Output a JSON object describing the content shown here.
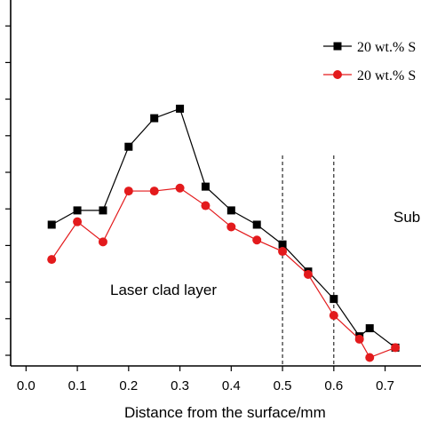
{
  "chart_data": {
    "type": "line",
    "xlabel": "Distance from the surface/mm",
    "ylabel": "",
    "xlim": [
      -0.03,
      0.77
    ],
    "ylim": [
      0,
      1
    ],
    "x_ticks": [
      "0.0",
      "0.1",
      "0.2",
      "0.3",
      "0.4",
      "0.5",
      "0.6",
      "0.7"
    ],
    "y_tick_count": 10,
    "legend_position": "top-right",
    "grid": false,
    "series": [
      {
        "name": "20 wt.% S",
        "marker": "square",
        "color": "#000000",
        "x": [
          0.05,
          0.1,
          0.15,
          0.2,
          0.25,
          0.3,
          0.35,
          0.4,
          0.45,
          0.5,
          0.55,
          0.6,
          0.65,
          0.67,
          0.72
        ],
        "y": [
          0.386,
          0.425,
          0.425,
          0.599,
          0.677,
          0.703,
          0.49,
          0.425,
          0.386,
          0.332,
          0.258,
          0.183,
          0.081,
          0.103,
          0.05
        ]
      },
      {
        "name": "20 wt.% S",
        "marker": "circle",
        "color": "#e31a1c",
        "x": [
          0.05,
          0.1,
          0.15,
          0.2,
          0.25,
          0.3,
          0.35,
          0.4,
          0.45,
          0.5,
          0.55,
          0.6,
          0.65,
          0.67,
          0.72
        ],
        "y": [
          0.291,
          0.394,
          0.339,
          0.478,
          0.478,
          0.486,
          0.438,
          0.38,
          0.344,
          0.313,
          0.25,
          0.138,
          0.073,
          0.023,
          0.05
        ]
      }
    ],
    "vlines": [
      0.5,
      0.6
    ],
    "annotations": [
      "Laser clad layer",
      "Sub"
    ]
  }
}
